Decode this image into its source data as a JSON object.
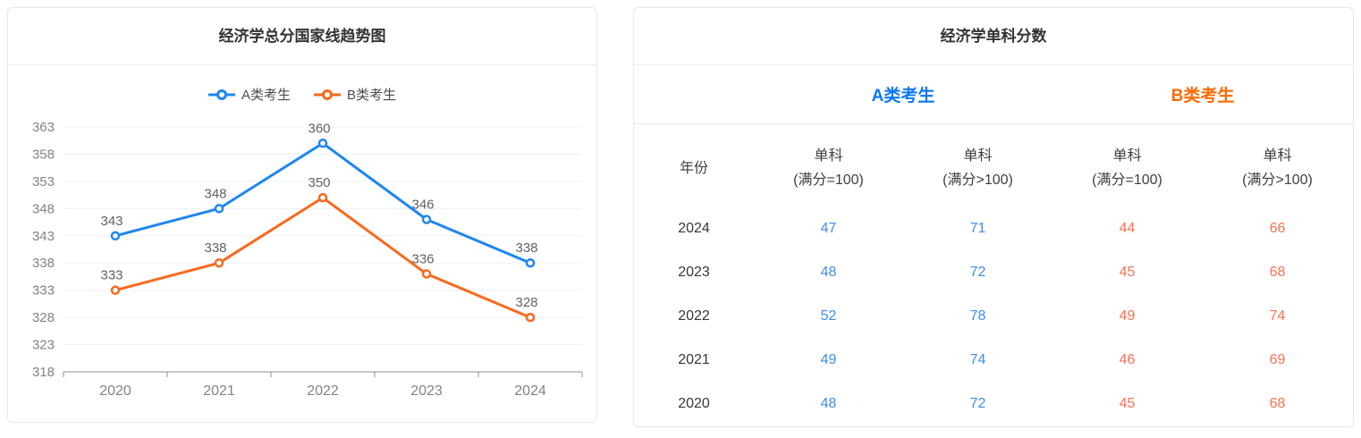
{
  "left_panel": {
    "title": "经济学总分国家线趋势图"
  },
  "chart_data": {
    "type": "line",
    "title": "经济学总分国家线趋势图",
    "categories": [
      "2020",
      "2021",
      "2022",
      "2023",
      "2024"
    ],
    "series": [
      {
        "name": "A类考生",
        "color": "#1E86F0",
        "values": [
          343,
          348,
          360,
          346,
          338
        ]
      },
      {
        "name": "B类考生",
        "color": "#F9691D",
        "values": [
          333,
          338,
          350,
          336,
          328
        ]
      }
    ],
    "ylim": [
      318,
      363
    ],
    "ytick_step": 5,
    "yticks": [
      318,
      323,
      328,
      333,
      338,
      343,
      348,
      353,
      358,
      363
    ],
    "grid": true,
    "legend_position": "top",
    "show_point_labels": true,
    "axis_color": "#8A8D94",
    "grid_color": "#EDF1F7",
    "tick_label_color": "#7E838A",
    "data_label_color": "#5E6267"
  },
  "right_panel": {
    "title": "经济学单科分数",
    "group_headers": [
      {
        "label": "A类考生",
        "color": "#0C77F2"
      },
      {
        "label": "B类考生",
        "color": "#FC6A00"
      }
    ],
    "columns": [
      {
        "line1": "年份",
        "line2": ""
      },
      {
        "line1": "单科",
        "line2": "(满分=100)"
      },
      {
        "line1": "单科",
        "line2": "(满分>100)"
      },
      {
        "line1": "单科",
        "line2": "(满分=100)"
      },
      {
        "line1": "单科",
        "line2": "(满分>100)"
      }
    ],
    "value_colors": [
      "#3D8DEF",
      "#3D8DEF",
      "#FC7050",
      "#FC7050"
    ],
    "rows": [
      {
        "year": "2024",
        "values": [
          47,
          71,
          44,
          66
        ]
      },
      {
        "year": "2023",
        "values": [
          48,
          72,
          45,
          68
        ]
      },
      {
        "year": "2022",
        "values": [
          52,
          78,
          49,
          74
        ]
      },
      {
        "year": "2021",
        "values": [
          49,
          74,
          46,
          69
        ]
      },
      {
        "year": "2020",
        "values": [
          48,
          72,
          45,
          68
        ]
      }
    ]
  }
}
